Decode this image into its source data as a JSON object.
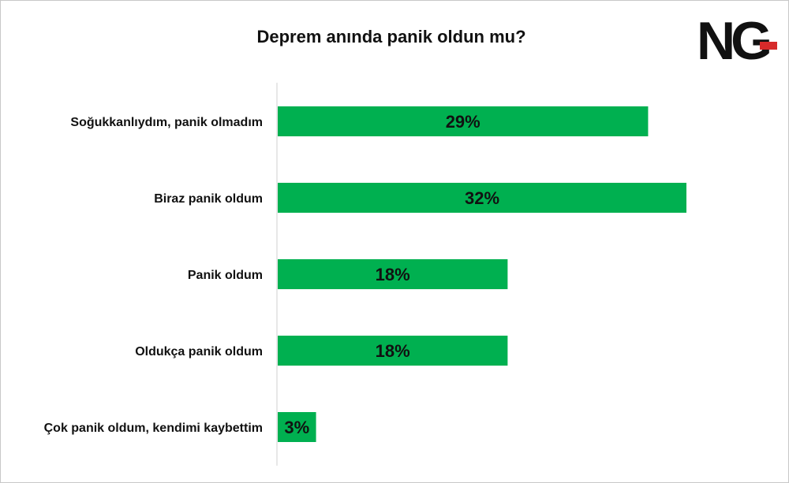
{
  "logo": {
    "text": "NG",
    "accent": "#d62a2a"
  },
  "chart_data": {
    "type": "bar",
    "orientation": "horizontal",
    "title": "Deprem anında panik oldun mu?",
    "categories": [
      "Soğukkanlıydım, panik olmadım",
      "Biraz panik oldum",
      "Panik oldum",
      "Oldukça panik oldum",
      "Çok panik oldum, kendimi kaybettim"
    ],
    "values": [
      29,
      32,
      18,
      18,
      3
    ],
    "value_labels": [
      "29%",
      "32%",
      "18%",
      "18%",
      "3%"
    ],
    "bar_color": "#00b050",
    "xlim": [
      0,
      40
    ],
    "grid": false,
    "legend": "none"
  }
}
